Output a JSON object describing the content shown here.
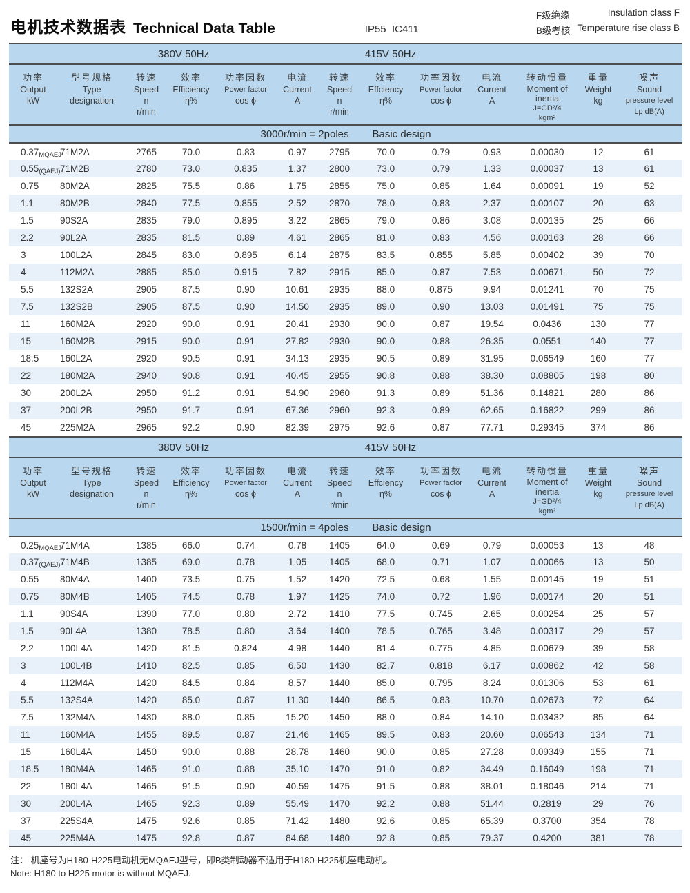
{
  "header": {
    "title_zh": "电机技术数据表",
    "title_en": "Technical Data Table",
    "protection": "IP55  IC411",
    "insulation_zh": "F级绝缘",
    "insulation_en": "Insulation class F",
    "temp_rise_zh": "B级考核",
    "temp_rise_en": "Temperature rise class B"
  },
  "table_header": {
    "voltage_spans": [
      {
        "label": "380V 50Hz",
        "span": 6,
        "cls": "v380"
      },
      {
        "label": "415V 50Hz",
        "span": 4,
        "cls": "v415"
      },
      {
        "label": "",
        "span": 3,
        "cls": "vblank"
      }
    ],
    "columns": [
      {
        "key": "output-kw",
        "zh": "功率",
        "lines": [
          "Output",
          "kW"
        ]
      },
      {
        "key": "type",
        "zh": "型号规格",
        "lines": [
          "Type",
          "designation"
        ]
      },
      {
        "key": "speed-380",
        "zh": "转速",
        "lines": [
          "Speed",
          "n",
          "r/min"
        ]
      },
      {
        "key": "efficiency-380",
        "zh": "效率",
        "lines": [
          "Efficiency",
          "η%"
        ]
      },
      {
        "key": "power-factor-380",
        "zh": "功率因数",
        "lines": [
          "Power factor",
          "cos ϕ"
        ],
        "small": [
          0
        ]
      },
      {
        "key": "current-380",
        "zh": "电流",
        "lines": [
          "Current",
          "A"
        ]
      },
      {
        "key": "speed-415",
        "zh": "转速",
        "lines": [
          "Speed",
          "n",
          "r/min"
        ]
      },
      {
        "key": "efficiency-415",
        "zh": "效率",
        "lines": [
          "Effciency",
          "η%"
        ]
      },
      {
        "key": "power-factor-415",
        "zh": "功率因数",
        "lines": [
          "Power factor",
          "cos ϕ"
        ],
        "small": [
          0
        ]
      },
      {
        "key": "current-415",
        "zh": "电流",
        "lines": [
          "Current",
          "A"
        ]
      },
      {
        "key": "moment-of-inertia",
        "zh": "转动惯量",
        "lines": [
          "Moment of",
          "inertia",
          "J=GD²/4",
          "kgm²"
        ],
        "tight": true,
        "small": [
          2,
          3
        ]
      },
      {
        "key": "weight",
        "zh": "重量",
        "lines": [
          "Weight",
          "kg"
        ]
      },
      {
        "key": "sound",
        "zh": "噪声",
        "lines": [
          "Sound",
          "pressure level",
          "Lp dB(A)"
        ],
        "small": [
          1,
          2
        ]
      }
    ]
  },
  "tables": [
    {
      "name": "2-pole",
      "section_left": "3000r/min = 2poles",
      "section_right": "Basic  design",
      "kw_notes": {
        "0": "MQAEJ",
        "1": "(QAEJ)"
      },
      "rows": [
        [
          "0.37",
          "71M2A",
          "2765",
          "70.0",
          "0.83",
          "0.97",
          "2795",
          "70.0",
          "0.79",
          "0.93",
          "0.00030",
          "12",
          "61"
        ],
        [
          "0.55",
          "71M2B",
          "2780",
          "73.0",
          "0.835",
          "1.37",
          "2800",
          "73.0",
          "0.79",
          "1.33",
          "0.00037",
          "13",
          "61"
        ],
        [
          "0.75",
          "80M2A",
          "2825",
          "75.5",
          "0.86",
          "1.75",
          "2855",
          "75.0",
          "0.85",
          "1.64",
          "0.00091",
          "19",
          "52"
        ],
        [
          "1.1",
          "80M2B",
          "2840",
          "77.5",
          "0.855",
          "2.52",
          "2870",
          "78.0",
          "0.83",
          "2.37",
          "0.00107",
          "20",
          "63"
        ],
        [
          "1.5",
          "90S2A",
          "2835",
          "79.0",
          "0.895",
          "3.22",
          "2865",
          "79.0",
          "0.86",
          "3.08",
          "0.00135",
          "25",
          "66"
        ],
        [
          "2.2",
          "90L2A",
          "2835",
          "81.5",
          "0.89",
          "4.61",
          "2865",
          "81.0",
          "0.83",
          "4.56",
          "0.00163",
          "28",
          "66"
        ],
        [
          "3",
          "100L2A",
          "2845",
          "83.0",
          "0.895",
          "6.14",
          "2875",
          "83.5",
          "0.855",
          "5.85",
          "0.00402",
          "39",
          "70"
        ],
        [
          "4",
          "112M2A",
          "2885",
          "85.0",
          "0.915",
          "7.82",
          "2915",
          "85.0",
          "0.87",
          "7.53",
          "0.00671",
          "50",
          "72"
        ],
        [
          "5.5",
          "132S2A",
          "2905",
          "87.5",
          "0.90",
          "10.61",
          "2935",
          "88.0",
          "0.875",
          "9.94",
          "0.01241",
          "70",
          "75"
        ],
        [
          "7.5",
          "132S2B",
          "2905",
          "87.5",
          "0.90",
          "14.50",
          "2935",
          "89.0",
          "0.90",
          "13.03",
          "0.01491",
          "75",
          "75"
        ],
        [
          "11",
          "160M2A",
          "2920",
          "90.0",
          "0.91",
          "20.41",
          "2930",
          "90.0",
          "0.87",
          "19.54",
          "0.0436",
          "130",
          "77"
        ],
        [
          "15",
          "160M2B",
          "2915",
          "90.0",
          "0.91",
          "27.82",
          "2930",
          "90.0",
          "0.88",
          "26.35",
          "0.0551",
          "140",
          "77"
        ],
        [
          "18.5",
          "160L2A",
          "2920",
          "90.5",
          "0.91",
          "34.13",
          "2935",
          "90.5",
          "0.89",
          "31.95",
          "0.06549",
          "160",
          "77"
        ],
        [
          "22",
          "180M2A",
          "2940",
          "90.8",
          "0.91",
          "40.45",
          "2955",
          "90.8",
          "0.88",
          "38.30",
          "0.08805",
          "198",
          "80"
        ],
        [
          "30",
          "200L2A",
          "2950",
          "91.2",
          "0.91",
          "54.90",
          "2960",
          "91.3",
          "0.89",
          "51.36",
          "0.14821",
          "280",
          "86"
        ],
        [
          "37",
          "200L2B",
          "2950",
          "91.7",
          "0.91",
          "67.36",
          "2960",
          "92.3",
          "0.89",
          "62.65",
          "0.16822",
          "299",
          "86"
        ],
        [
          "45",
          "225M2A",
          "2965",
          "92.2",
          "0.90",
          "82.39",
          "2975",
          "92.6",
          "0.87",
          "77.71",
          "0.29345",
          "374",
          "86"
        ]
      ]
    },
    {
      "name": "4-pole",
      "section_left": "1500r/min = 4poles",
      "section_right": "Basic  design",
      "kw_notes": {
        "0": "MQAEJ",
        "1": "(QAEJ)"
      },
      "rows": [
        [
          "0.25",
          "71M4A",
          "1385",
          "66.0",
          "0.74",
          "0.78",
          "1405",
          "64.0",
          "0.69",
          "0.79",
          "0.00053",
          "13",
          "48"
        ],
        [
          "0.37",
          "71M4B",
          "1385",
          "69.0",
          "0.78",
          "1.05",
          "1405",
          "68.0",
          "0.71",
          "1.07",
          "0.00066",
          "13",
          "50"
        ],
        [
          "0.55",
          "80M4A",
          "1400",
          "73.5",
          "0.75",
          "1.52",
          "1420",
          "72.5",
          "0.68",
          "1.55",
          "0.00145",
          "19",
          "51"
        ],
        [
          "0.75",
          "80M4B",
          "1405",
          "74.5",
          "0.78",
          "1.97",
          "1425",
          "74.0",
          "0.72",
          "1.96",
          "0.00174",
          "20",
          "51"
        ],
        [
          "1.1",
          "90S4A",
          "1390",
          "77.0",
          "0.80",
          "2.72",
          "1410",
          "77.5",
          "0.745",
          "2.65",
          "0.00254",
          "25",
          "57"
        ],
        [
          "1.5",
          "90L4A",
          "1380",
          "78.5",
          "0.80",
          "3.64",
          "1400",
          "78.5",
          "0.765",
          "3.48",
          "0.00317",
          "29",
          "57"
        ],
        [
          "2.2",
          "100L4A",
          "1420",
          "81.5",
          "0.824",
          "4.98",
          "1440",
          "81.4",
          "0.775",
          "4.85",
          "0.00679",
          "39",
          "58"
        ],
        [
          "3",
          "100L4B",
          "1410",
          "82.5",
          "0.85",
          "6.50",
          "1430",
          "82.7",
          "0.818",
          "6.17",
          "0.00862",
          "42",
          "58"
        ],
        [
          "4",
          "112M4A",
          "1420",
          "84.5",
          "0.84",
          "8.57",
          "1440",
          "85.0",
          "0.795",
          "8.24",
          "0.01306",
          "53",
          "61"
        ],
        [
          "5.5",
          "132S4A",
          "1420",
          "85.0",
          "0.87",
          "11.30",
          "1440",
          "86.5",
          "0.83",
          "10.70",
          "0.02673",
          "72",
          "64"
        ],
        [
          "7.5",
          "132M4A",
          "1430",
          "88.0",
          "0.85",
          "15.20",
          "1450",
          "88.0",
          "0.84",
          "14.10",
          "0.03432",
          "85",
          "64"
        ],
        [
          "11",
          "160M4A",
          "1455",
          "89.5",
          "0.87",
          "21.46",
          "1465",
          "89.5",
          "0.83",
          "20.60",
          "0.06543",
          "134",
          "71"
        ],
        [
          "15",
          "160L4A",
          "1450",
          "90.0",
          "0.88",
          "28.78",
          "1460",
          "90.0",
          "0.85",
          "27.28",
          "0.09349",
          "155",
          "71"
        ],
        [
          "18.5",
          "180M4A",
          "1465",
          "91.0",
          "0.88",
          "35.10",
          "1470",
          "91.0",
          "0.82",
          "34.49",
          "0.16049",
          "198",
          "71"
        ],
        [
          "22",
          "180L4A",
          "1465",
          "91.5",
          "0.90",
          "40.59",
          "1475",
          "91.5",
          "0.88",
          "38.01",
          "0.18046",
          "214",
          "71"
        ],
        [
          "30",
          "200L4A",
          "1465",
          "92.3",
          "0.89",
          "55.49",
          "1470",
          "92.2",
          "0.88",
          "51.44",
          "0.2819",
          "29",
          "76"
        ],
        [
          "37",
          "225S4A",
          "1475",
          "92.6",
          "0.85",
          "71.42",
          "1480",
          "92.6",
          "0.85",
          "65.39",
          "0.3700",
          "354",
          "78"
        ],
        [
          "45",
          "225M4A",
          "1475",
          "92.8",
          "0.87",
          "84.68",
          "1480",
          "92.8",
          "0.85",
          "79.37",
          "0.4200",
          "381",
          "78"
        ]
      ]
    }
  ],
  "footer": {
    "note_zh": "注：  机座号为H180-H225电动机无MQAEJ型号，即B类制动器不适用于H180-H225机座电动机。",
    "note_en": "Note: H180 to H225 motor is without MQAEJ."
  },
  "colors": {
    "band_blue": "#b9d8ef",
    "stripe_blue": "#e8f0f9",
    "rule_dark": "#4d4d4f"
  }
}
